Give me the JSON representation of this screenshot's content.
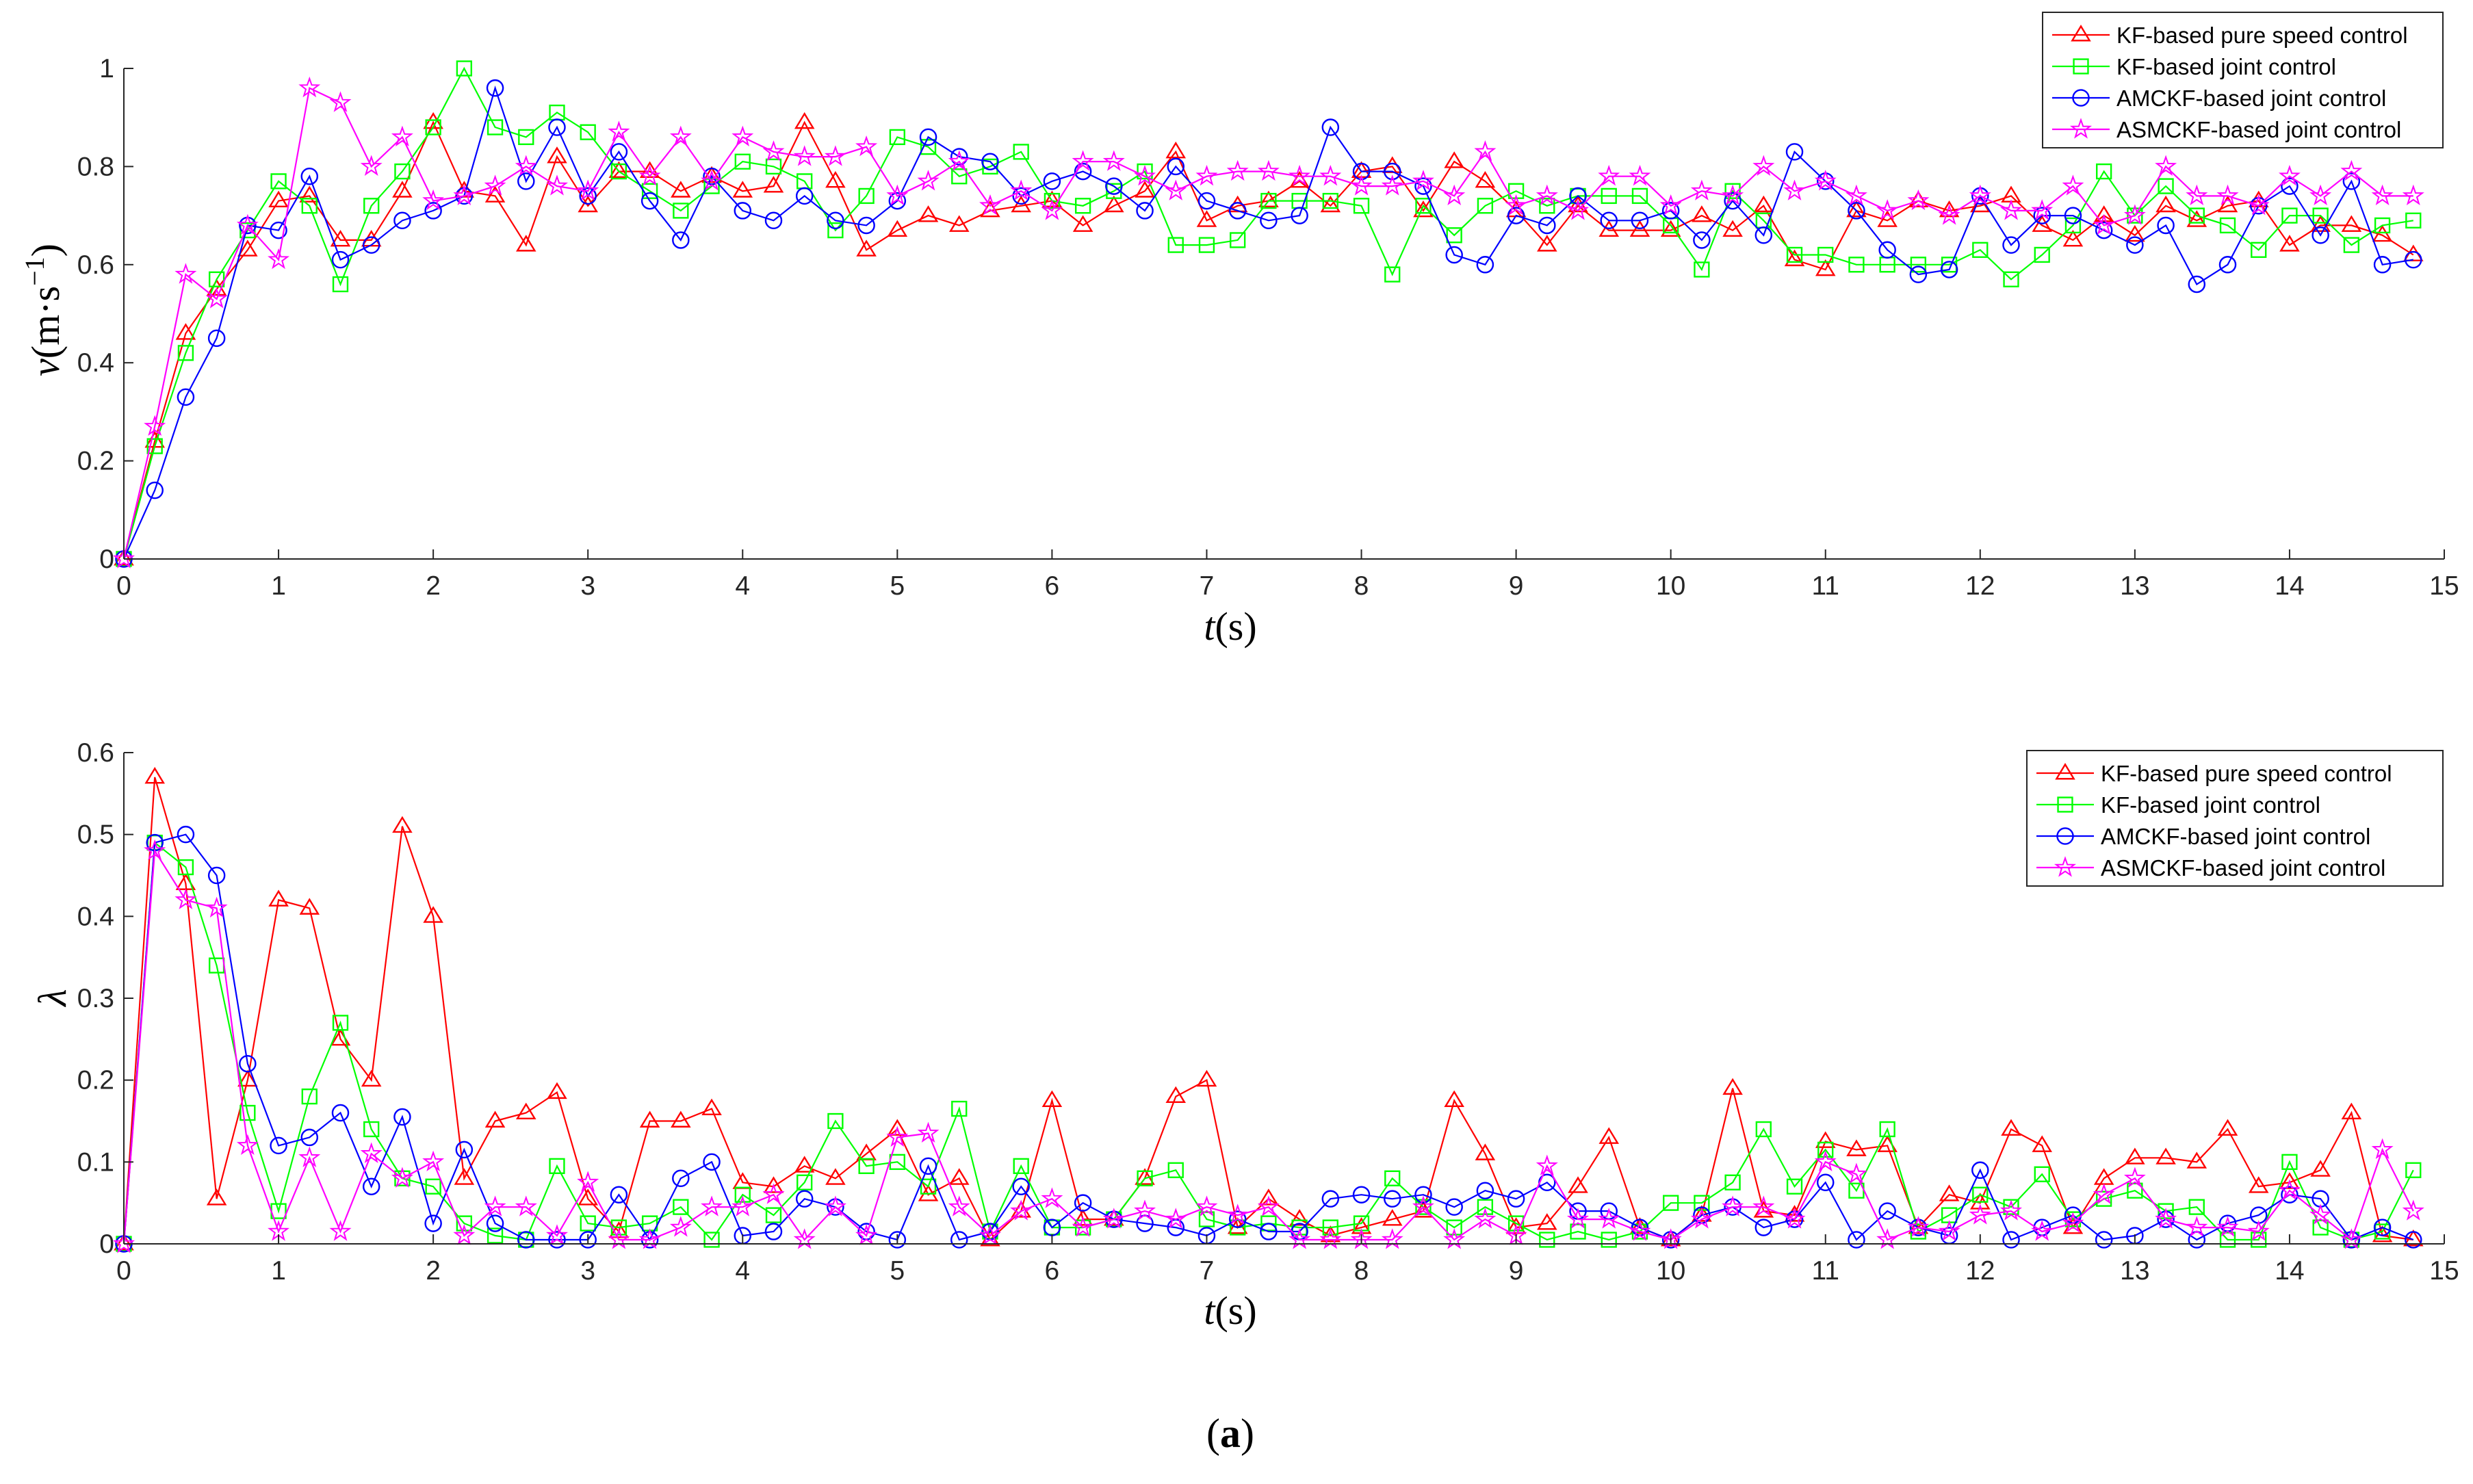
{
  "figure": {
    "caption_open": "(",
    "caption_letter": "a",
    "caption_close": ")"
  },
  "chart_data": [
    {
      "type": "line",
      "title": "",
      "xlabel_italic": "t",
      "xlabel_unit": "(s)",
      "ylabel_italic": "v",
      "ylabel_unit": "(m·s",
      "ylabel_sup": "−1",
      "ylabel_close": ")",
      "xlim": [
        0,
        15
      ],
      "ylim": [
        0,
        1
      ],
      "xticks": [
        0,
        1,
        2,
        3,
        4,
        5,
        6,
        7,
        8,
        9,
        10,
        11,
        12,
        13,
        14,
        15
      ],
      "yticks": [
        0,
        0.2,
        0.4,
        0.6,
        0.8,
        1
      ],
      "ytick_labels": [
        "0",
        "0.2",
        "0.4",
        "0.6",
        "0.8",
        "1"
      ],
      "grid": false,
      "legend_position": "top-right",
      "x": [
        0,
        0.2,
        0.4,
        0.6,
        0.8,
        1,
        1.2,
        1.4,
        1.6,
        1.8,
        2,
        2.2,
        2.4,
        2.6,
        2.8,
        3,
        3.2,
        3.4,
        3.6,
        3.8,
        4,
        4.2,
        4.4,
        4.6,
        4.8,
        5,
        5.2,
        5.4,
        5.6,
        5.8,
        6,
        6.2,
        6.4,
        6.6,
        6.8,
        7,
        7.2,
        7.4,
        7.6,
        7.8,
        8,
        8.2,
        8.4,
        8.6,
        8.8,
        9,
        9.2,
        9.4,
        9.6,
        9.8,
        10,
        10.2,
        10.4,
        10.6,
        10.8,
        11,
        11.2,
        11.4,
        11.6,
        11.8,
        12,
        12.2,
        12.4,
        12.6,
        12.8,
        13,
        13.2,
        13.4,
        13.6,
        13.8,
        14,
        14.2,
        14.4,
        14.6,
        14.8
      ],
      "series": [
        {
          "name": "KF-based pure speed control",
          "color": "#ff0000",
          "marker": "triangle",
          "values": [
            0,
            0.24,
            0.46,
            0.55,
            0.63,
            0.73,
            0.74,
            0.65,
            0.65,
            0.75,
            0.89,
            0.75,
            0.74,
            0.64,
            0.82,
            0.72,
            0.79,
            0.79,
            0.75,
            0.78,
            0.75,
            0.76,
            0.89,
            0.77,
            0.63,
            0.67,
            0.7,
            0.68,
            0.71,
            0.72,
            0.73,
            0.68,
            0.72,
            0.75,
            0.83,
            0.69,
            0.72,
            0.73,
            0.77,
            0.72,
            0.79,
            0.8,
            0.71,
            0.81,
            0.77,
            0.71,
            0.64,
            0.72,
            0.67,
            0.67,
            0.67,
            0.7,
            0.67,
            0.72,
            0.61,
            0.59,
            0.71,
            0.69,
            0.73,
            0.71,
            0.72,
            0.74,
            0.68,
            0.65,
            0.7,
            0.66,
            0.72,
            0.69,
            0.72,
            0.73,
            0.64,
            0.68,
            0.68,
            0.66,
            0.62
          ]
        },
        {
          "name": "KF-based joint control",
          "color": "#00ff00",
          "marker": "square",
          "values": [
            0,
            0.23,
            0.42,
            0.57,
            0.67,
            0.77,
            0.72,
            0.56,
            0.72,
            0.79,
            0.88,
            1.0,
            0.88,
            0.86,
            0.91,
            0.87,
            0.79,
            0.75,
            0.71,
            0.76,
            0.81,
            0.8,
            0.77,
            0.67,
            0.74,
            0.86,
            0.84,
            0.78,
            0.8,
            0.83,
            0.73,
            0.72,
            0.75,
            0.79,
            0.64,
            0.64,
            0.65,
            0.73,
            0.73,
            0.73,
            0.72,
            0.58,
            0.72,
            0.66,
            0.72,
            0.75,
            0.72,
            0.74,
            0.74,
            0.74,
            0.68,
            0.59,
            0.75,
            0.69,
            0.62,
            0.62,
            0.6,
            0.6,
            0.6,
            0.6,
            0.63,
            0.57,
            0.62,
            0.68,
            0.79,
            0.7,
            0.76,
            0.7,
            0.68,
            0.63,
            0.7,
            0.7,
            0.64,
            0.68,
            0.69
          ]
        },
        {
          "name": "AMCKF-based joint control",
          "color": "#0000ff",
          "marker": "circle",
          "values": [
            0,
            0.14,
            0.33,
            0.45,
            0.68,
            0.67,
            0.78,
            0.61,
            0.64,
            0.69,
            0.71,
            0.74,
            0.96,
            0.77,
            0.88,
            0.74,
            0.83,
            0.73,
            0.65,
            0.78,
            0.71,
            0.69,
            0.74,
            0.69,
            0.68,
            0.73,
            0.86,
            0.82,
            0.81,
            0.74,
            0.77,
            0.79,
            0.76,
            0.71,
            0.8,
            0.73,
            0.71,
            0.69,
            0.7,
            0.88,
            0.79,
            0.79,
            0.76,
            0.62,
            0.6,
            0.7,
            0.68,
            0.74,
            0.69,
            0.69,
            0.71,
            0.65,
            0.73,
            0.66,
            0.83,
            0.77,
            0.71,
            0.63,
            0.58,
            0.59,
            0.74,
            0.64,
            0.7,
            0.7,
            0.67,
            0.64,
            0.68,
            0.56,
            0.6,
            0.72,
            0.76,
            0.66,
            0.77,
            0.6,
            0.61
          ]
        },
        {
          "name": "ASMCKF-based joint control",
          "color": "#ff00ff",
          "marker": "star",
          "values": [
            0,
            0.27,
            0.58,
            0.53,
            0.68,
            0.61,
            0.96,
            0.93,
            0.8,
            0.86,
            0.73,
            0.74,
            0.76,
            0.8,
            0.76,
            0.75,
            0.87,
            0.78,
            0.86,
            0.77,
            0.86,
            0.83,
            0.82,
            0.82,
            0.84,
            0.74,
            0.77,
            0.81,
            0.72,
            0.75,
            0.71,
            0.81,
            0.81,
            0.78,
            0.75,
            0.78,
            0.79,
            0.79,
            0.78,
            0.78,
            0.76,
            0.76,
            0.77,
            0.74,
            0.83,
            0.72,
            0.74,
            0.71,
            0.78,
            0.78,
            0.72,
            0.75,
            0.74,
            0.8,
            0.75,
            0.77,
            0.74,
            0.71,
            0.73,
            0.7,
            0.74,
            0.71,
            0.71,
            0.76,
            0.68,
            0.7,
            0.8,
            0.74,
            0.74,
            0.72,
            0.78,
            0.74,
            0.79,
            0.74,
            0.74
          ]
        }
      ]
    },
    {
      "type": "line",
      "title": "",
      "xlabel_italic": "t",
      "xlabel_unit": "(s)",
      "ylabel_italic": "λ",
      "xlim": [
        0,
        15
      ],
      "ylim": [
        0,
        0.6
      ],
      "xticks": [
        0,
        1,
        2,
        3,
        4,
        5,
        6,
        7,
        8,
        9,
        10,
        11,
        12,
        13,
        14,
        15
      ],
      "yticks": [
        0,
        0.1,
        0.2,
        0.3,
        0.4,
        0.5,
        0.6
      ],
      "ytick_labels": [
        "0",
        "0.1",
        "0.2",
        "0.3",
        "0.4",
        "0.5",
        "0.6"
      ],
      "grid": false,
      "legend_position": "top-right",
      "x": [
        0,
        0.2,
        0.4,
        0.6,
        0.8,
        1,
        1.2,
        1.4,
        1.6,
        1.8,
        2,
        2.2,
        2.4,
        2.6,
        2.8,
        3,
        3.2,
        3.4,
        3.6,
        3.8,
        4,
        4.2,
        4.4,
        4.6,
        4.8,
        5,
        5.2,
        5.4,
        5.6,
        5.8,
        6,
        6.2,
        6.4,
        6.6,
        6.8,
        7,
        7.2,
        7.4,
        7.6,
        7.8,
        8,
        8.2,
        8.4,
        8.6,
        8.8,
        9,
        9.2,
        9.4,
        9.6,
        9.8,
        10,
        10.2,
        10.4,
        10.6,
        10.8,
        11,
        11.2,
        11.4,
        11.6,
        11.8,
        12,
        12.2,
        12.4,
        12.6,
        12.8,
        13,
        13.2,
        13.4,
        13.6,
        13.8,
        14,
        14.2,
        14.4,
        14.6,
        14.8
      ],
      "series": [
        {
          "name": "KF-based pure speed control",
          "color": "#ff0000",
          "marker": "triangle",
          "values": [
            0,
            0.57,
            0.44,
            0.055,
            0.2,
            0.42,
            0.41,
            0.25,
            0.2,
            0.51,
            0.4,
            0.08,
            0.15,
            0.16,
            0.185,
            0.055,
            0.015,
            0.15,
            0.15,
            0.165,
            0.075,
            0.07,
            0.095,
            0.08,
            0.11,
            0.14,
            0.06,
            0.08,
            0.005,
            0.04,
            0.175,
            0.03,
            0.03,
            0.08,
            0.18,
            0.2,
            0.02,
            0.055,
            0.03,
            0.01,
            0.02,
            0.03,
            0.04,
            0.175,
            0.11,
            0.02,
            0.025,
            0.07,
            0.13,
            0.02,
            0.005,
            0.035,
            0.19,
            0.04,
            0.035,
            0.125,
            0.115,
            0.12,
            0.02,
            0.06,
            0.05,
            0.14,
            0.12,
            0.02,
            0.08,
            0.105,
            0.105,
            0.1,
            0.14,
            0.07,
            0.075,
            0.09,
            0.16,
            0.01,
            0.005
          ]
        },
        {
          "name": "KF-based joint control",
          "color": "#00ff00",
          "marker": "square",
          "values": [
            0,
            0.49,
            0.46,
            0.34,
            0.16,
            0.04,
            0.18,
            0.27,
            0.14,
            0.08,
            0.07,
            0.025,
            0.01,
            0.005,
            0.095,
            0.025,
            0.02,
            0.025,
            0.045,
            0.005,
            0.06,
            0.035,
            0.075,
            0.15,
            0.095,
            0.1,
            0.07,
            0.165,
            0.015,
            0.095,
            0.02,
            0.02,
            0.03,
            0.08,
            0.09,
            0.03,
            0.02,
            0.025,
            0.02,
            0.02,
            0.025,
            0.08,
            0.045,
            0.02,
            0.045,
            0.025,
            0.005,
            0.015,
            0.005,
            0.015,
            0.05,
            0.05,
            0.075,
            0.14,
            0.07,
            0.115,
            0.065,
            0.14,
            0.015,
            0.035,
            0.06,
            0.045,
            0.085,
            0.03,
            0.055,
            0.065,
            0.04,
            0.045,
            0.005,
            0.005,
            0.1,
            0.02,
            0.005,
            0.015,
            0.09
          ]
        },
        {
          "name": "AMCKF-based joint control",
          "color": "#0000ff",
          "marker": "circle",
          "values": [
            0,
            0.49,
            0.5,
            0.45,
            0.22,
            0.12,
            0.13,
            0.16,
            0.07,
            0.155,
            0.025,
            0.115,
            0.025,
            0.005,
            0.005,
            0.005,
            0.06,
            0.005,
            0.08,
            0.1,
            0.01,
            0.015,
            0.055,
            0.045,
            0.015,
            0.005,
            0.095,
            0.005,
            0.015,
            0.07,
            0.02,
            0.05,
            0.03,
            0.025,
            0.02,
            0.01,
            0.03,
            0.015,
            0.015,
            0.055,
            0.06,
            0.055,
            0.06,
            0.045,
            0.065,
            0.055,
            0.075,
            0.04,
            0.04,
            0.02,
            0.005,
            0.035,
            0.045,
            0.02,
            0.03,
            0.075,
            0.005,
            0.04,
            0.02,
            0.01,
            0.09,
            0.005,
            0.02,
            0.035,
            0.005,
            0.01,
            0.03,
            0.005,
            0.025,
            0.035,
            0.06,
            0.055,
            0.005,
            0.02,
            0.005
          ]
        },
        {
          "name": "ASMCKF-based joint control",
          "color": "#ff00ff",
          "marker": "star",
          "values": [
            0,
            0.48,
            0.42,
            0.41,
            0.12,
            0.015,
            0.105,
            0.015,
            0.11,
            0.08,
            0.1,
            0.01,
            0.045,
            0.045,
            0.01,
            0.075,
            0.005,
            0.005,
            0.02,
            0.045,
            0.045,
            0.06,
            0.005,
            0.045,
            0.01,
            0.13,
            0.135,
            0.045,
            0.01,
            0.04,
            0.055,
            0.02,
            0.03,
            0.04,
            0.03,
            0.045,
            0.035,
            0.045,
            0.005,
            0.005,
            0.005,
            0.005,
            0.045,
            0.005,
            0.03,
            0.01,
            0.095,
            0.03,
            0.03,
            0.015,
            0.005,
            0.03,
            0.045,
            0.045,
            0.03,
            0.1,
            0.085,
            0.005,
            0.02,
            0.015,
            0.035,
            0.04,
            0.015,
            0.025,
            0.06,
            0.08,
            0.03,
            0.02,
            0.02,
            0.015,
            0.065,
            0.035,
            0.005,
            0.115,
            0.04
          ]
        }
      ]
    }
  ]
}
